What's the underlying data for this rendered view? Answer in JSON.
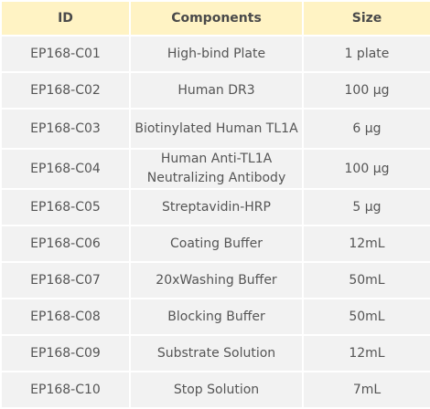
{
  "table": {
    "headers": {
      "id": "ID",
      "components": "Components",
      "size": "Size"
    },
    "rows": [
      {
        "id": "EP168-C01",
        "component": "High-bind Plate",
        "size": "1 plate"
      },
      {
        "id": "EP168-C02",
        "component": "Human DR3",
        "size": "100 μg"
      },
      {
        "id": "EP168-C03",
        "component": "Biotinylated Human TL1A",
        "size": "6 μg"
      },
      {
        "id": "EP168-C04",
        "component": "Human Anti-TL1A Neutralizing Antibody",
        "size": "100 μg"
      },
      {
        "id": "EP168-C05",
        "component": "Streptavidin-HRP",
        "size": "5 μg"
      },
      {
        "id": "EP168-C06",
        "component": "Coating Buffer",
        "size": "12mL"
      },
      {
        "id": "EP168-C07",
        "component": "20xWashing Buffer",
        "size": "50mL"
      },
      {
        "id": "EP168-C08",
        "component": "Blocking Buffer",
        "size": "50mL"
      },
      {
        "id": "EP168-C09",
        "component": "Substrate Solution",
        "size": "12mL"
      },
      {
        "id": "EP168-C10",
        "component": "Stop Solution",
        "size": "7mL"
      }
    ]
  }
}
